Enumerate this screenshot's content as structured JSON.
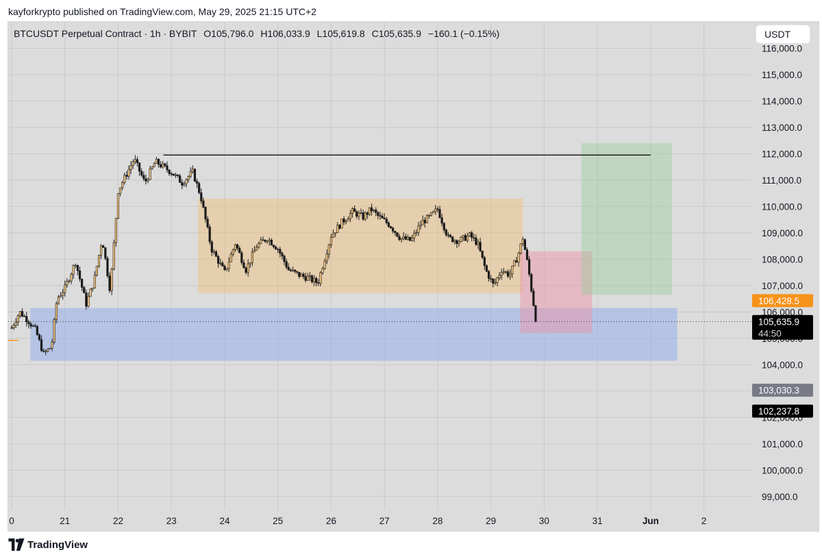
{
  "header": {
    "publisher_line": "kayforkrypto published on TradingView.com, May 29, 2025 21:15 UTC+2"
  },
  "legend": {
    "symbol": "BTCUSDT Perpetual Contract · 1h · BYBIT",
    "open": "O105,796.0",
    "high": "H106,033.9",
    "low": "L105,619.8",
    "close": "C105,635.9",
    "change": "−160.1 (−0.15%)"
  },
  "currency_button": "USDT",
  "footer": {
    "brand": "TradingView",
    "logo_icon": "tradingview-logo-icon"
  },
  "colors": {
    "background": "#dcdcdc",
    "orange_zone": "rgba(240,190,120,0.45)",
    "blue_zone": "rgba(150,175,235,0.55)",
    "red_zone": "rgba(235,150,170,0.50)",
    "green_zone": "rgba(150,205,150,0.40)",
    "candle_up": "#f1c27d",
    "candle_down": "#1a1a1a",
    "price_tag_orange": "#f7931a",
    "price_tag_gray": "#787b86",
    "price_tag_black": "#000000"
  },
  "chart_data": {
    "type": "candlestick",
    "interval": "1h",
    "ylim": [
      98500,
      117000
    ],
    "y_ticks": [
      "116,000.0",
      "115,000.0",
      "114,000.0",
      "113,000.0",
      "112,000.0",
      "111,000.0",
      "110,000.0",
      "109,000.0",
      "108,000.0",
      "107,000.0",
      "106,000.0",
      "105,000.0",
      "104,000.0",
      "103,000.0",
      "102,000.0",
      "101,000.0",
      "100,000.0",
      "99,000.0"
    ],
    "x_ticks": [
      "0",
      "21",
      "22",
      "23",
      "24",
      "25",
      "26",
      "27",
      "28",
      "29",
      "30",
      "31",
      "Jun",
      "2"
    ],
    "x_tick_days": [
      0,
      1,
      2,
      3,
      4,
      5,
      6,
      7,
      8,
      9,
      10,
      11,
      12,
      13
    ],
    "x_range_days": [
      0,
      14.6
    ],
    "last_candle_day": 9.85,
    "price_path": [
      [
        0.0,
        105400
      ],
      [
        0.15,
        106000
      ],
      [
        0.3,
        105700
      ],
      [
        0.45,
        105300
      ],
      [
        0.6,
        104400
      ],
      [
        0.75,
        104700
      ],
      [
        0.85,
        106500
      ],
      [
        1.0,
        106900
      ],
      [
        1.2,
        107900
      ],
      [
        1.4,
        106300
      ],
      [
        1.55,
        107200
      ],
      [
        1.7,
        108800
      ],
      [
        1.85,
        106800
      ],
      [
        2.0,
        110600
      ],
      [
        2.15,
        111200
      ],
      [
        2.3,
        111800
      ],
      [
        2.5,
        110900
      ],
      [
        2.7,
        111700
      ],
      [
        2.85,
        111500
      ],
      [
        3.0,
        111300
      ],
      [
        3.2,
        110900
      ],
      [
        3.4,
        111300
      ],
      [
        3.55,
        110400
      ],
      [
        3.75,
        108400
      ],
      [
        4.0,
        107500
      ],
      [
        4.2,
        108600
      ],
      [
        4.4,
        107600
      ],
      [
        4.6,
        108500
      ],
      [
        4.8,
        108800
      ],
      [
        5.0,
        108400
      ],
      [
        5.2,
        107600
      ],
      [
        5.4,
        107400
      ],
      [
        5.55,
        107300
      ],
      [
        5.75,
        107100
      ],
      [
        6.0,
        108900
      ],
      [
        6.2,
        109400
      ],
      [
        6.4,
        109800
      ],
      [
        6.6,
        109600
      ],
      [
        6.75,
        109900
      ],
      [
        6.9,
        109600
      ],
      [
        7.1,
        109300
      ],
      [
        7.3,
        108800
      ],
      [
        7.5,
        108700
      ],
      [
        7.7,
        109400
      ],
      [
        7.85,
        109600
      ],
      [
        8.0,
        109900
      ],
      [
        8.2,
        108800
      ],
      [
        8.4,
        108700
      ],
      [
        8.6,
        108900
      ],
      [
        8.75,
        108600
      ],
      [
        8.9,
        107600
      ],
      [
        9.05,
        107000
      ],
      [
        9.2,
        107600
      ],
      [
        9.35,
        107400
      ],
      [
        9.5,
        108100
      ],
      [
        9.6,
        108800
      ],
      [
        9.7,
        107700
      ],
      [
        9.8,
        106300
      ],
      [
        9.85,
        105636
      ]
    ],
    "zones": [
      {
        "name": "orange-range-zone",
        "day0": 3.5,
        "day1": 9.6,
        "y0": 106700,
        "y1": 110300
      },
      {
        "name": "blue-support-zone",
        "day0": 0.35,
        "day1": 12.5,
        "y0": 104150,
        "y1": 106150
      },
      {
        "name": "red-stop-zone",
        "day0": 9.55,
        "day1": 10.9,
        "y0": 105200,
        "y1": 108300
      },
      {
        "name": "green-target-zone",
        "day0": 10.7,
        "day1": 12.4,
        "y0": 106650,
        "y1": 112400
      }
    ],
    "horizontal_line": {
      "day0": 2.85,
      "day1": 12.0,
      "y": 111950
    },
    "current_price_line": 105635.9,
    "price_tags": [
      {
        "label": "106,428.5",
        "value": 106428.5,
        "color_key": "price_tag_orange"
      },
      {
        "label": "105,635.9",
        "value": 105635.9,
        "color_key": "price_tag_black",
        "sublabel": "44:50"
      },
      {
        "label": "103,030.3",
        "value": 103030.3,
        "color_key": "price_tag_gray"
      },
      {
        "label": "102,237.8",
        "value": 102237.8,
        "color_key": "price_tag_black"
      }
    ]
  }
}
